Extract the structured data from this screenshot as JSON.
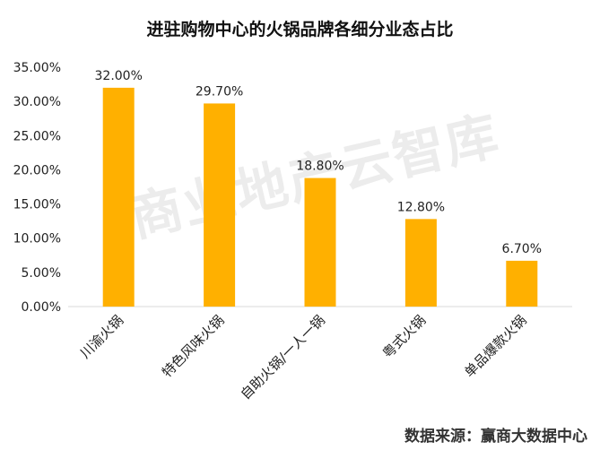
{
  "chart_data": {
    "type": "bar",
    "title": "进驻购物中心的火锅品牌各细分业态占比",
    "categories": [
      "川渝火锅",
      "特色风味火锅",
      "自助火锅/一人一锅",
      "粤式火锅",
      "单品爆款火锅"
    ],
    "values": [
      32.0,
      29.7,
      18.8,
      12.8,
      6.7
    ],
    "data_labels": [
      "32.00%",
      "29.70%",
      "18.80%",
      "12.80%",
      "6.70%"
    ],
    "ylim": [
      0,
      35
    ],
    "yticks": [
      "0.00%",
      "5.00%",
      "10.00%",
      "15.00%",
      "20.00%",
      "25.00%",
      "30.00%",
      "35.00%"
    ],
    "bar_color": "#FFB000",
    "grid": false,
    "xlabel": "",
    "ylabel": ""
  },
  "watermark": "商业地产云智库",
  "source": "数据来源：赢商大数据中心"
}
